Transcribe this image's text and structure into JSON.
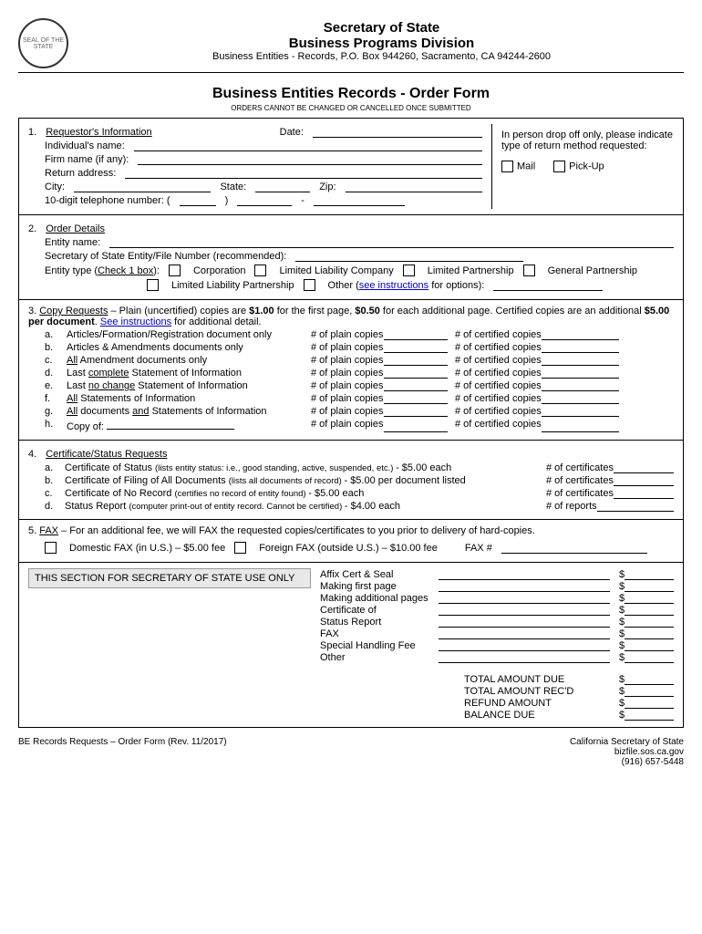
{
  "header": {
    "title1": "Secretary of State",
    "title2": "Business Programs Division",
    "address": "Business Entities - Records, P.O. Box 944260, Sacramento, CA 94244-2600"
  },
  "form_title": "Business Entities Records - Order Form",
  "form_subtitle": "ORDERS CANNOT BE CHANGED OR CANCELLED ONCE SUBMITTED",
  "section1": {
    "heading": "Requestor's Information",
    "date_label": "Date:",
    "name_label": "Individual's name:",
    "firm_label": "Firm name (if any):",
    "return_label": "Return address:",
    "city_label": "City:",
    "state_label": "State:",
    "zip_label": "Zip:",
    "phone_label": "10-digit telephone number:   (",
    "right_text": "In person drop off only, please indicate type of return method requested:",
    "mail": "Mail",
    "pickup": "Pick-Up"
  },
  "section2": {
    "heading": "Order Details",
    "entity_label": "Entity name:",
    "file_label": "Secretary of State Entity/File Number (recommended):",
    "type_label": "Entity type (",
    "type_link": "Check 1 box",
    "corp": "Corporation",
    "llc": "Limited Liability Company",
    "lp": "Limited Partnership",
    "gp": "General Partnership",
    "llp": "Limited Liability Partnership",
    "other": "Other (",
    "see_inst": "see instructions",
    "for_opt": " for options):"
  },
  "section3": {
    "heading": "Copy Requests",
    "intro1": " – Plain (uncertified) copies are ",
    "price1": "$1.00",
    "intro2": " for the first page, ",
    "price2": "$0.50",
    "intro3": " for each additional page.  Certified copies are an additional ",
    "price3": "$5.00 per document",
    "intro4": ".  ",
    "see_link": "See instructions",
    "intro5": " for additional detail.",
    "plain_hdr": "# of plain copies",
    "cert_hdr": "# of certified copies",
    "rows": [
      {
        "l": "a.",
        "t": "Articles/Formation/Registration document only"
      },
      {
        "l": "b.",
        "t": "Articles & Amendments documents only"
      },
      {
        "l": "c.",
        "t1": "All",
        "t2": " Amendment documents only"
      },
      {
        "l": "d.",
        "t1": "Last ",
        "u": "complete",
        "t2": " Statement of Information"
      },
      {
        "l": "e.",
        "t1": "Last ",
        "u": "no change",
        "t2": " Statement of Information"
      },
      {
        "l": "f.",
        "t1": "All",
        "t2": " Statements of Information"
      },
      {
        "l": "g.",
        "t1": "All",
        "t2": " documents ",
        "u2": "and",
        "t3": " Statements of Information"
      },
      {
        "l": "h.",
        "t": "Copy of:"
      }
    ]
  },
  "section4": {
    "heading": "Certificate/Status Requests",
    "rows": [
      {
        "l": "a.",
        "t": "Certificate of Status ",
        "s": "(lists entity status: i.e., good standing, active, suspended, etc.) ",
        "p": "-  $5.00 each",
        "c": "# of certificates"
      },
      {
        "l": "b.",
        "t": "Certificate of Filing of All Documents ",
        "s": "(lists all documents of record) ",
        "p": "- $5.00 per document listed",
        "c": "# of certificates"
      },
      {
        "l": "c.",
        "t": "Certificate of No Record ",
        "s": "(certifies no record of entity found) ",
        "p": "- $5.00 each",
        "c": "# of certificates"
      },
      {
        "l": "d.",
        "t": "Status Report ",
        "s": "(computer print-out of entity record.  Cannot be certified) ",
        "p": "- $4.00 each",
        "c": "# of reports"
      }
    ]
  },
  "section5": {
    "heading": "FAX",
    "intro": " – For an additional fee, we will FAX the requested copies/certificates to you prior to delivery of hard-copies.",
    "domestic": "Domestic FAX (in U.S.) – $5.00 fee",
    "foreign": "Foreign FAX (outside U.S.) – $10.00 fee",
    "faxnum": "FAX #"
  },
  "sos": {
    "heading": "THIS SECTION FOR SECRETARY OF STATE USE ONLY",
    "fees": [
      "Affix Cert & Seal",
      "Making first page",
      "Making additional pages",
      "Certificate of",
      "Status Report",
      "FAX",
      "Special Handling Fee",
      "Other"
    ],
    "totals": [
      "TOTAL AMOUNT DUE",
      "TOTAL AMOUNT REC'D",
      "REFUND AMOUNT",
      "BALANCE DUE"
    ]
  },
  "footer": {
    "left": "BE Records Requests – Order Form (Rev. 11/2017)",
    "r1": "California Secretary of State",
    "r2": "bizfile.sos.ca.gov",
    "r3": "(916) 657-5448"
  }
}
